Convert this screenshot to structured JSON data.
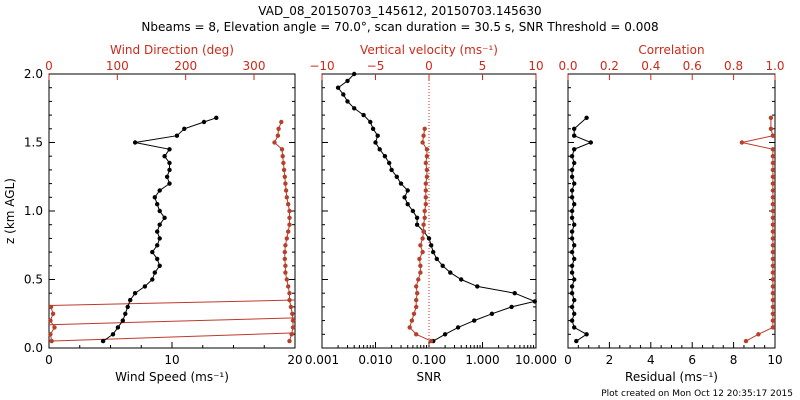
{
  "colors": {
    "black": "#000000",
    "red": "#c0392b",
    "red_axis": "#cc2a1a",
    "marker_red": "#b5412a"
  },
  "header": {
    "title": "VAD_08_20150703_145612, 20150703.145630",
    "subtitle": "Nbeams = 8, Elevation angle = 70.0°, scan duration = 30.5 s, SNR Threshold = 0.008"
  },
  "footer": {
    "credit": "Plot created on Mon Oct 12 20:35:17 2015"
  },
  "chart_data": [
    {
      "type": "line",
      "name": "wind-profile",
      "ylabel": "z (km AGL)",
      "ylim": [
        0,
        2.0
      ],
      "yticks": [
        "0.0",
        "0.5",
        "1.0",
        "1.5",
        "2.0"
      ],
      "xlabel": "Wind Speed (ms⁻¹)",
      "xlim": [
        0,
        20
      ],
      "xticks": [
        "0",
        "10",
        "20"
      ],
      "top_label": "Wind Direction (deg)",
      "top_xlim": [
        0,
        360
      ],
      "top_ticks": [
        "0",
        "100",
        "200",
        "300"
      ],
      "series": [
        {
          "name": "Wind Speed",
          "axis": "bottom",
          "color": "black",
          "z": [
            0.05,
            0.1,
            0.15,
            0.2,
            0.25,
            0.3,
            0.35,
            0.4,
            0.45,
            0.5,
            0.55,
            0.6,
            0.65,
            0.7,
            0.75,
            0.8,
            0.85,
            0.9,
            0.95,
            1.0,
            1.05,
            1.1,
            1.15,
            1.2,
            1.25,
            1.3,
            1.35,
            1.4,
            1.45,
            1.5,
            1.55,
            1.6,
            1.65,
            1.68
          ],
          "value": [
            4.4,
            5.2,
            5.6,
            6.0,
            6.2,
            6.4,
            6.6,
            7.0,
            7.8,
            8.4,
            8.6,
            9.0,
            8.8,
            8.4,
            8.8,
            9.0,
            8.8,
            9.0,
            9.4,
            9.0,
            8.8,
            8.6,
            9.0,
            9.8,
            9.6,
            9.8,
            9.8,
            9.4,
            9.8,
            7.0,
            10.4,
            11.0,
            12.6,
            13.6
          ]
        },
        {
          "name": "Wind Direction",
          "axis": "top",
          "color": "red",
          "z": [
            0.05,
            0.1,
            0.15,
            0.2,
            0.25,
            0.3,
            0.35,
            0.4,
            0.45,
            0.5,
            0.55,
            0.6,
            0.65,
            0.7,
            0.75,
            0.8,
            0.85,
            0.9,
            0.95,
            1.0,
            1.05,
            1.1,
            1.15,
            1.2,
            1.25,
            1.3,
            1.35,
            1.4,
            1.45,
            1.5,
            1.55,
            1.6,
            1.65
          ],
          "value": [
            352,
            355,
            357,
            357,
            356,
            354,
            352,
            352,
            350,
            348,
            346,
            346,
            345,
            345,
            346,
            348,
            350,
            352,
            352,
            352,
            350,
            348,
            347,
            346,
            345,
            344,
            343,
            342,
            341,
            330,
            335,
            336,
            340
          ]
        },
        {
          "name": "Wind Direction (low)",
          "axis": "top",
          "color": "red",
          "z": [
            0.05,
            0.1,
            0.15,
            0.2,
            0.25,
            0.3
          ],
          "value": [
            4,
            2,
            8,
            2,
            6,
            3
          ]
        }
      ],
      "wrap_lines": [
        {
          "z_left": 0.05,
          "z_right": 0.11
        },
        {
          "z_left": 0.17,
          "z_right": 0.22
        },
        {
          "z_left": 0.31,
          "z_right": 0.35
        }
      ]
    },
    {
      "type": "line",
      "name": "snr-vertical-velocity",
      "xlabel": "SNR",
      "xscale": "log",
      "xlim": [
        0.001,
        10
      ],
      "xticks": [
        "0.001",
        "0.010",
        "0.100",
        "1.000",
        "10.000"
      ],
      "top_label": "Vertical velocity (ms⁻¹)",
      "top_xlim": [
        -10,
        10
      ],
      "top_ticks": [
        "−10",
        "−5",
        "0",
        "5",
        "10"
      ],
      "series": [
        {
          "name": "SNR",
          "axis": "bottom",
          "color": "black",
          "z": [
            0.05,
            0.1,
            0.15,
            0.2,
            0.25,
            0.3,
            0.34,
            0.4,
            0.45,
            0.5,
            0.55,
            0.6,
            0.65,
            0.7,
            0.75,
            0.8,
            0.85,
            0.9,
            0.95,
            1.0,
            1.05,
            1.1,
            1.15,
            1.2,
            1.25,
            1.3,
            1.35,
            1.4,
            1.45,
            1.5,
            1.55,
            1.6,
            1.65,
            1.7,
            1.75,
            1.8,
            1.85,
            1.9,
            1.95,
            2.0
          ],
          "value": [
            0.12,
            0.2,
            0.35,
            0.7,
            1.5,
            3.5,
            9.5,
            4.0,
            0.8,
            0.4,
            0.25,
            0.18,
            0.14,
            0.12,
            0.11,
            0.1,
            0.08,
            0.06,
            0.06,
            0.05,
            0.04,
            0.035,
            0.04,
            0.03,
            0.025,
            0.02,
            0.018,
            0.015,
            0.012,
            0.01,
            0.011,
            0.009,
            0.008,
            0.006,
            0.004,
            0.003,
            0.0025,
            0.002,
            0.003,
            0.004
          ]
        },
        {
          "name": "Vertical velocity",
          "axis": "top",
          "color": "red",
          "z": [
            0.05,
            0.1,
            0.15,
            0.2,
            0.25,
            0.3,
            0.35,
            0.4,
            0.45,
            0.5,
            0.55,
            0.6,
            0.65,
            0.7,
            0.75,
            0.8,
            0.85,
            0.9,
            0.95,
            1.0,
            1.05,
            1.1,
            1.15,
            1.2,
            1.25,
            1.3,
            1.35,
            1.4,
            1.45,
            1.5,
            1.55,
            1.6
          ],
          "value": [
            0.2,
            -1.2,
            -1.8,
            -1.6,
            -1.4,
            -1.2,
            -1.2,
            -1.1,
            -1.2,
            -1.0,
            -0.8,
            -0.8,
            -0.9,
            -0.6,
            -0.8,
            -0.6,
            -0.5,
            -0.5,
            -0.4,
            -0.4,
            -0.3,
            -0.3,
            -0.3,
            -0.3,
            -0.2,
            -0.2,
            -0.3,
            -0.2,
            -0.2,
            -0.6,
            -0.5,
            -0.4
          ]
        }
      ],
      "reference_line": {
        "axis": "top",
        "value": 0,
        "style": "dotted"
      }
    },
    {
      "type": "line",
      "name": "residual-correlation",
      "xlabel": "Residual (ms⁻¹)",
      "xlim": [
        0,
        10
      ],
      "xticks": [
        "0",
        "2",
        "4",
        "6",
        "8",
        "10"
      ],
      "top_label": "Correlation",
      "top_xlim": [
        0,
        1
      ],
      "top_ticks": [
        "0.0",
        "0.2",
        "0.4",
        "0.6",
        "0.8",
        "1.0"
      ],
      "series": [
        {
          "name": "Residual",
          "axis": "bottom",
          "color": "black",
          "z": [
            0.05,
            0.1,
            0.15,
            0.2,
            0.25,
            0.3,
            0.35,
            0.4,
            0.45,
            0.5,
            0.55,
            0.6,
            0.65,
            0.7,
            0.75,
            0.8,
            0.85,
            0.9,
            0.95,
            1.0,
            1.05,
            1.1,
            1.15,
            1.2,
            1.25,
            1.3,
            1.35,
            1.4,
            1.45,
            1.5,
            1.55,
            1.6,
            1.68
          ],
          "value": [
            0.4,
            0.9,
            0.3,
            0.2,
            0.3,
            0.2,
            0.3,
            0.2,
            0.2,
            0.3,
            0.2,
            0.2,
            0.3,
            0.2,
            0.3,
            0.2,
            0.2,
            0.3,
            0.2,
            0.2,
            0.3,
            0.2,
            0.2,
            0.3,
            0.2,
            0.2,
            0.3,
            0.2,
            0.3,
            1.1,
            0.3,
            0.3,
            0.9
          ]
        },
        {
          "name": "Correlation",
          "axis": "top",
          "color": "red",
          "z": [
            0.05,
            0.1,
            0.15,
            0.2,
            0.25,
            0.3,
            0.35,
            0.4,
            0.45,
            0.5,
            0.55,
            0.6,
            0.65,
            0.7,
            0.75,
            0.8,
            0.85,
            0.9,
            0.95,
            1.0,
            1.05,
            1.1,
            1.15,
            1.2,
            1.25,
            1.3,
            1.35,
            1.4,
            1.45,
            1.5,
            1.55,
            1.6,
            1.68
          ],
          "value": [
            0.86,
            0.92,
            0.99,
            0.99,
            0.99,
            0.99,
            0.99,
            0.99,
            0.99,
            0.99,
            0.99,
            0.99,
            0.99,
            0.99,
            0.99,
            0.99,
            0.99,
            0.99,
            0.99,
            0.99,
            0.99,
            0.99,
            0.99,
            0.99,
            0.99,
            0.99,
            0.99,
            0.99,
            0.99,
            0.84,
            0.99,
            0.98,
            0.98
          ]
        }
      ]
    }
  ]
}
